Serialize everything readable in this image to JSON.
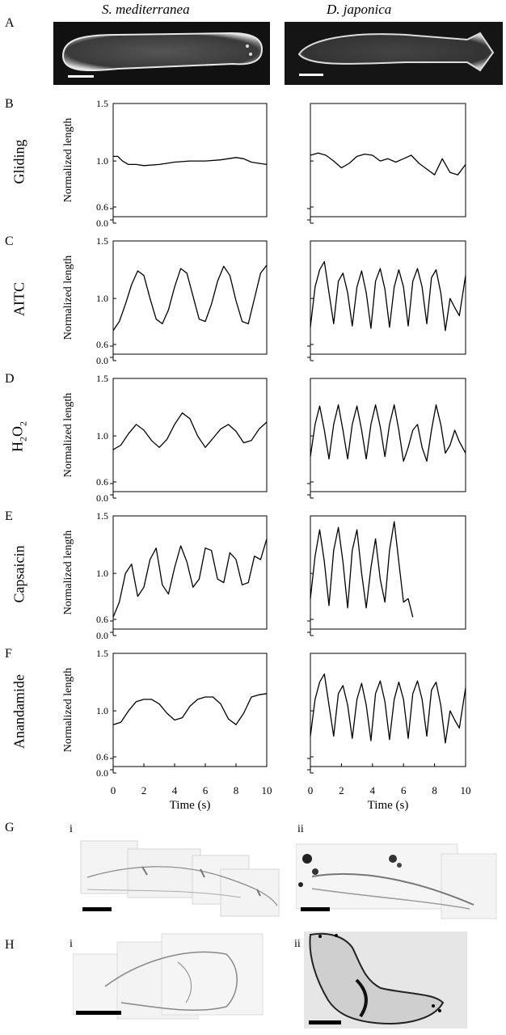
{
  "columns": {
    "left_title": "S. mediterranea",
    "right_title": "D. japonica"
  },
  "panel_labels": [
    "A",
    "B",
    "C",
    "D",
    "E",
    "F",
    "G",
    "H"
  ],
  "condition_labels": [
    "Gliding",
    "AITC",
    "H2O2",
    "Capsaicin",
    "Anandamide"
  ],
  "ylabel": "Normalized length",
  "xlabel": "Time (s)",
  "sublabels": {
    "g_i": "i",
    "g_ii": "ii",
    "h_i": "i",
    "h_ii": "ii"
  },
  "chart_data": [
    {
      "type": "line",
      "panel": "B",
      "condition": "Gliding",
      "species": "S. mediterranea",
      "xlim": [
        0,
        10
      ],
      "ylim": [
        0,
        1.5
      ],
      "yticks": [
        "0.0",
        "0.6",
        "1.0",
        "1.5"
      ],
      "xticks": [],
      "x": [
        0,
        0.3,
        0.6,
        1,
        1.5,
        2,
        3,
        4,
        5,
        6,
        7,
        8,
        8.5,
        9,
        9.5,
        10
      ],
      "y": [
        1.04,
        1.04,
        1.0,
        0.97,
        0.97,
        0.96,
        0.97,
        0.99,
        1.0,
        1.0,
        1.01,
        1.03,
        1.02,
        0.99,
        0.98,
        0.97
      ]
    },
    {
      "type": "line",
      "panel": "B",
      "condition": "Gliding",
      "species": "D. japonica",
      "xlim": [
        0,
        10
      ],
      "ylim": [
        0,
        1.5
      ],
      "yticks": [
        "0.0",
        "0.6",
        "1.0",
        "1.5"
      ],
      "xticks": [],
      "x": [
        0,
        0.5,
        1,
        1.5,
        2,
        2.5,
        3,
        3.5,
        4,
        4.5,
        5,
        5.5,
        6,
        6.5,
        7,
        7.5,
        8,
        8.5,
        9,
        9.5,
        10
      ],
      "y": [
        1.05,
        1.07,
        1.05,
        1.0,
        0.94,
        0.98,
        1.04,
        1.06,
        1.05,
        1.0,
        1.02,
        0.99,
        1.02,
        1.05,
        0.98,
        0.93,
        0.88,
        1.02,
        0.9,
        0.88,
        0.97
      ]
    },
    {
      "type": "line",
      "panel": "C",
      "condition": "AITC",
      "species": "S. mediterranea",
      "xlim": [
        0,
        10
      ],
      "ylim": [
        0,
        1.5
      ],
      "yticks": [
        "0.0",
        "0.6",
        "1.0",
        "1.5"
      ],
      "xticks": [],
      "x": [
        0,
        0.4,
        0.8,
        1.2,
        1.6,
        2.0,
        2.4,
        2.8,
        3.2,
        3.6,
        4.0,
        4.4,
        4.8,
        5.2,
        5.6,
        6.0,
        6.4,
        6.8,
        7.2,
        7.6,
        8.0,
        8.4,
        8.8,
        9.2,
        9.6,
        10
      ],
      "y": [
        0.72,
        0.8,
        0.95,
        1.12,
        1.24,
        1.2,
        1.0,
        0.82,
        0.78,
        0.9,
        1.1,
        1.26,
        1.22,
        1.02,
        0.82,
        0.8,
        0.95,
        1.15,
        1.28,
        1.2,
        0.98,
        0.8,
        0.78,
        1.0,
        1.22,
        1.29
      ]
    },
    {
      "type": "line",
      "panel": "C",
      "condition": "AITC",
      "species": "D. japonica",
      "xlim": [
        0,
        10
      ],
      "ylim": [
        0,
        1.5
      ],
      "yticks": [
        "0.0",
        "0.6",
        "1.0",
        "1.5"
      ],
      "xticks": [],
      "x": [
        0,
        0.3,
        0.6,
        0.9,
        1.2,
        1.5,
        1.8,
        2.1,
        2.4,
        2.7,
        3.0,
        3.3,
        3.6,
        3.9,
        4.2,
        4.5,
        4.8,
        5.1,
        5.4,
        5.7,
        6.0,
        6.3,
        6.6,
        6.9,
        7.2,
        7.5,
        7.8,
        8.1,
        8.4,
        8.7,
        9.0,
        9.3,
        9.6,
        10
      ],
      "y": [
        0.75,
        1.1,
        1.25,
        1.32,
        1.05,
        0.78,
        1.15,
        1.22,
        1.05,
        0.76,
        1.1,
        1.24,
        1.05,
        0.74,
        1.15,
        1.26,
        1.08,
        0.75,
        1.1,
        1.25,
        1.1,
        0.76,
        1.15,
        1.26,
        1.1,
        0.78,
        1.18,
        1.25,
        1.05,
        0.72,
        1.0,
        0.92,
        0.85,
        1.2
      ]
    },
    {
      "type": "line",
      "panel": "D",
      "condition": "H2O2",
      "species": "S. mediterranea",
      "xlim": [
        0,
        10
      ],
      "ylim": [
        0,
        1.5
      ],
      "yticks": [
        "0.0",
        "0.6",
        "1.0",
        "1.5"
      ],
      "xticks": [],
      "x": [
        0,
        0.5,
        1,
        1.5,
        2,
        2.5,
        3,
        3.5,
        4,
        4.5,
        5,
        5.5,
        6,
        6.5,
        7,
        7.5,
        8,
        8.5,
        9,
        9.5,
        10
      ],
      "y": [
        0.88,
        0.92,
        1.02,
        1.1,
        1.05,
        0.96,
        0.9,
        0.97,
        1.1,
        1.2,
        1.15,
        1.0,
        0.9,
        0.98,
        1.06,
        1.1,
        1.04,
        0.94,
        0.96,
        1.06,
        1.12
      ]
    },
    {
      "type": "line",
      "panel": "D",
      "condition": "H2O2",
      "species": "D. japonica",
      "xlim": [
        0,
        10
      ],
      "ylim": [
        0,
        1.5
      ],
      "yticks": [
        "0.0",
        "0.6",
        "1.0",
        "1.5"
      ],
      "xticks": [],
      "x": [
        0,
        0.3,
        0.6,
        0.9,
        1.2,
        1.5,
        1.8,
        2.1,
        2.4,
        2.7,
        3.0,
        3.3,
        3.6,
        3.9,
        4.2,
        4.5,
        4.8,
        5.1,
        5.4,
        5.7,
        6.0,
        6.3,
        6.6,
        6.9,
        7.2,
        7.5,
        7.8,
        8.1,
        8.4,
        8.7,
        9.0,
        9.3,
        9.6,
        10
      ],
      "y": [
        0.82,
        1.1,
        1.26,
        1.05,
        0.8,
        1.1,
        1.27,
        1.05,
        0.8,
        1.1,
        1.26,
        1.05,
        0.8,
        1.1,
        1.27,
        1.08,
        0.82,
        1.1,
        1.27,
        1.05,
        0.78,
        0.9,
        1.05,
        1.1,
        0.9,
        0.78,
        1.05,
        1.27,
        1.1,
        0.85,
        0.92,
        1.05,
        0.95,
        0.85
      ]
    },
    {
      "type": "line",
      "panel": "E",
      "condition": "Capsaicin",
      "species": "S. mediterranea",
      "xlim": [
        0,
        10
      ],
      "ylim": [
        0,
        1.5
      ],
      "yticks": [
        "0.0",
        "0.6",
        "1.0",
        "1.5"
      ],
      "xticks": [],
      "x": [
        0,
        0.4,
        0.8,
        1.2,
        1.6,
        2.0,
        2.4,
        2.8,
        3.2,
        3.6,
        4.0,
        4.4,
        4.8,
        5.2,
        5.6,
        6.0,
        6.4,
        6.8,
        7.2,
        7.6,
        8.0,
        8.4,
        8.8,
        9.2,
        9.6,
        10
      ],
      "y": [
        0.62,
        0.75,
        1.0,
        1.08,
        0.8,
        0.88,
        1.12,
        1.22,
        0.9,
        0.82,
        1.05,
        1.24,
        1.1,
        0.88,
        0.95,
        1.22,
        1.2,
        0.95,
        0.92,
        1.18,
        1.12,
        0.9,
        0.92,
        1.15,
        1.12,
        1.3
      ]
    },
    {
      "type": "line",
      "panel": "E",
      "condition": "Capsaicin",
      "species": "D. japonica",
      "xlim": [
        0,
        10
      ],
      "ylim": [
        0,
        1.5
      ],
      "yticks": [
        "0.0",
        "0.6",
        "1.0",
        "1.5"
      ],
      "xticks": [],
      "x": [
        0,
        0.3,
        0.6,
        0.9,
        1.2,
        1.5,
        1.8,
        2.1,
        2.4,
        2.7,
        3.0,
        3.3,
        3.6,
        3.9,
        4.2,
        4.5,
        4.8,
        5.1,
        5.4,
        5.7,
        6.0,
        6.3,
        6.6
      ],
      "y": [
        0.78,
        1.15,
        1.38,
        1.1,
        0.72,
        1.2,
        1.4,
        1.1,
        0.7,
        1.2,
        1.38,
        1.0,
        0.7,
        1.05,
        1.3,
        0.95,
        0.75,
        1.2,
        1.45,
        1.1,
        0.75,
        0.78,
        0.62
      ]
    },
    {
      "type": "line",
      "panel": "F",
      "condition": "Anandamide",
      "species": "S. mediterranea",
      "xlim": [
        0,
        10
      ],
      "ylim": [
        0,
        1.5
      ],
      "yticks": [
        "0.0",
        "0.6",
        "1.0",
        "1.5"
      ],
      "xticks": [
        "0",
        "2",
        "4",
        "6",
        "8",
        "10"
      ],
      "x": [
        0,
        0.5,
        1,
        1.5,
        2,
        2.5,
        3,
        3.5,
        4,
        4.5,
        5,
        5.5,
        6,
        6.5,
        7,
        7.5,
        8,
        8.5,
        9,
        9.5,
        10
      ],
      "y": [
        0.88,
        0.9,
        1.0,
        1.08,
        1.1,
        1.1,
        1.06,
        0.98,
        0.92,
        0.94,
        1.04,
        1.1,
        1.12,
        1.12,
        1.06,
        0.93,
        0.88,
        0.98,
        1.12,
        1.14,
        1.15
      ]
    },
    {
      "type": "line",
      "panel": "F",
      "condition": "Anandamide",
      "species": "D. japonica",
      "xlim": [
        0,
        10
      ],
      "ylim": [
        0,
        1.5
      ],
      "yticks": [
        "0.0",
        "0.6",
        "1.0",
        "1.5"
      ],
      "xticks": [
        "0",
        "2",
        "4",
        "6",
        "8",
        "10"
      ],
      "x": [
        0,
        0.3,
        0.6,
        0.9,
        1.2,
        1.5,
        1.8,
        2.1,
        2.4,
        2.7,
        3.0,
        3.3,
        3.6,
        3.9,
        4.2,
        4.5,
        4.8,
        5.1,
        5.4,
        5.7,
        6.0,
        6.3,
        6.6,
        6.9,
        7.2,
        7.5,
        7.8,
        8.1,
        8.4,
        8.7,
        9.0,
        9.3,
        9.6,
        10
      ],
      "y": [
        0.78,
        1.1,
        1.25,
        1.32,
        1.05,
        0.78,
        1.15,
        1.22,
        1.05,
        0.76,
        1.1,
        1.24,
        1.05,
        0.74,
        1.15,
        1.26,
        1.08,
        0.75,
        1.1,
        1.25,
        1.1,
        0.76,
        1.15,
        1.26,
        1.1,
        0.78,
        1.18,
        1.25,
        1.05,
        0.72,
        1.0,
        0.92,
        0.85,
        1.2
      ]
    }
  ]
}
